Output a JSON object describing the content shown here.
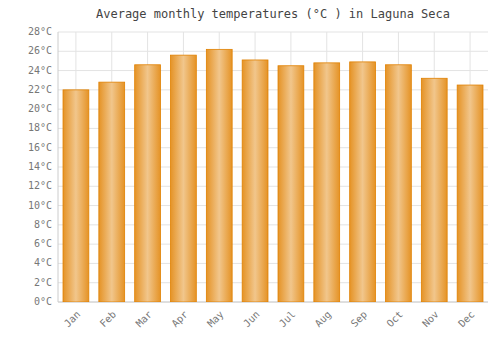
{
  "chart_data": {
    "type": "bar",
    "title": "Average monthly temperatures (°C ) in Laguna Seca",
    "categories": [
      "Jan",
      "Feb",
      "Mar",
      "Apr",
      "May",
      "Jun",
      "Jul",
      "Aug",
      "Sep",
      "Oct",
      "Nov",
      "Dec"
    ],
    "values": [
      22.0,
      22.8,
      24.6,
      25.6,
      26.2,
      25.1,
      24.5,
      24.8,
      24.9,
      24.6,
      23.2,
      22.5
    ],
    "color": "#E08000",
    "ylim": [
      0,
      28
    ],
    "yticks": [
      {
        "value": 0,
        "label": "0°C"
      },
      {
        "value": 2,
        "label": "2°C"
      },
      {
        "value": 4,
        "label": "4°C"
      },
      {
        "value": 6,
        "label": "6°C"
      },
      {
        "value": 8,
        "label": "8°C"
      },
      {
        "value": 10,
        "label": "10°C"
      },
      {
        "value": 12,
        "label": "12°C"
      },
      {
        "value": 14,
        "label": "14°C"
      },
      {
        "value": 16,
        "label": "16°C"
      },
      {
        "value": 18,
        "label": "18°C"
      },
      {
        "value": 20,
        "label": "20°C"
      },
      {
        "value": 22,
        "label": "22°C"
      },
      {
        "value": 24,
        "label": "24°C"
      },
      {
        "value": 26,
        "label": "26°C"
      },
      {
        "value": 28,
        "label": "28°C"
      }
    ],
    "grid": true
  }
}
